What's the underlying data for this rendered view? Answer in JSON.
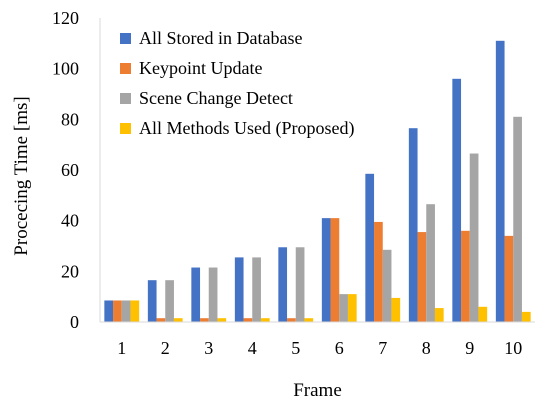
{
  "chart_data": {
    "type": "bar",
    "title": "",
    "xlabel": "Frame",
    "ylabel": "Procecing Time [ms]",
    "categories": [
      "1",
      "2",
      "3",
      "4",
      "5",
      "6",
      "7",
      "8",
      "9",
      "10"
    ],
    "series": [
      {
        "name": "All Stored in Database",
        "color": "#4472C4",
        "values": [
          8.5,
          16.5,
          21.5,
          25.5,
          29.5,
          41,
          58.5,
          76.5,
          96,
          111
        ]
      },
      {
        "name": "Keypoint Update",
        "color": "#ED7D31",
        "values": [
          8.5,
          1.5,
          1.5,
          1.5,
          1.5,
          41,
          39.5,
          35.5,
          36,
          34
        ]
      },
      {
        "name": "Scene Change Detect",
        "color": "#A5A5A5",
        "values": [
          8.5,
          16.5,
          21.5,
          25.5,
          29.5,
          11,
          28.5,
          46.5,
          66.5,
          81
        ]
      },
      {
        "name": "All Methods Used (Proposed)",
        "color": "#FFC000",
        "values": [
          8.5,
          1.5,
          1.5,
          1.5,
          1.5,
          11,
          9.5,
          5.5,
          6,
          4
        ]
      }
    ],
    "ylim": [
      0,
      120
    ],
    "yticks": [
      0,
      20,
      40,
      60,
      80,
      100,
      120
    ],
    "grid": false,
    "legend_position": "top-left"
  }
}
